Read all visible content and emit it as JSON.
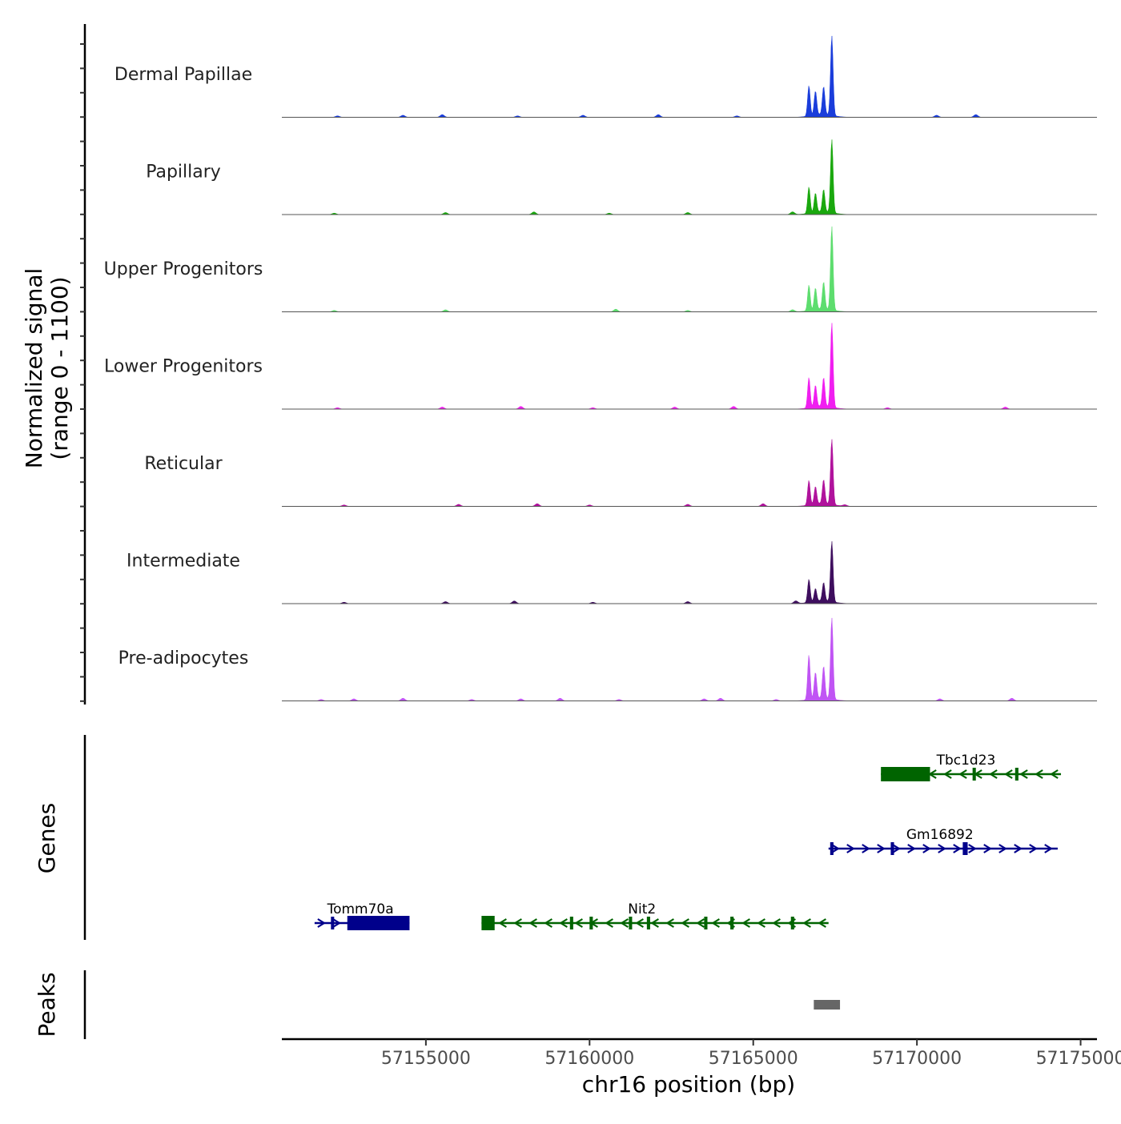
{
  "chart_data": {
    "type": "area",
    "title": "",
    "chromosome": "chr16",
    "xlabel": "chr16 position (bp)",
    "ylabel_line1": "Normalized signal",
    "ylabel_line2": "(range 0 - 1100)",
    "yrange": [
      0,
      1100
    ],
    "xlim": [
      57150600,
      57175500
    ],
    "x_ticks": [
      57155000,
      57160000,
      57165000,
      57170000,
      57175000
    ],
    "x_tick_labels": [
      "57155000",
      "57160000",
      "57165000",
      "57170000",
      "57175000"
    ],
    "genes_label": "Genes",
    "peaks_label": "Peaks",
    "coverage": [
      {
        "name": "Dermal Papillae",
        "color": "#1a3ddb",
        "peaks": [
          [
            57166700,
            380
          ],
          [
            57166900,
            300
          ],
          [
            57167150,
            350
          ],
          [
            57167400,
            1000
          ]
        ],
        "noise": [
          57152300,
          57154300,
          57155500,
          57157800,
          57159800,
          57162100,
          57164500,
          57170600,
          57171800
        ]
      },
      {
        "name": "Papillary",
        "color": "#1aa80e",
        "peaks": [
          [
            57166700,
            330
          ],
          [
            57166900,
            240
          ],
          [
            57167150,
            280
          ],
          [
            57167400,
            920
          ]
        ],
        "noise": [
          57152200,
          57155600,
          57158300,
          57160600,
          57163000,
          57166200
        ]
      },
      {
        "name": "Upper Progenitors",
        "color": "#5ddd6e",
        "peaks": [
          [
            57166700,
            320
          ],
          [
            57166900,
            270
          ],
          [
            57167150,
            340
          ],
          [
            57167400,
            1050
          ]
        ],
        "noise": [
          57152200,
          57155600,
          57160800,
          57163000,
          57166200
        ]
      },
      {
        "name": "Lower Progenitors",
        "color": "#f01ef0",
        "peaks": [
          [
            57166700,
            380
          ],
          [
            57166900,
            270
          ],
          [
            57167150,
            360
          ],
          [
            57167400,
            1060
          ]
        ],
        "noise": [
          57152300,
          57155500,
          57157900,
          57160100,
          57162600,
          57164400,
          57169100,
          57172700
        ]
      },
      {
        "name": "Reticular",
        "color": "#b0129c",
        "peaks": [
          [
            57166700,
            310
          ],
          [
            57166900,
            220
          ],
          [
            57167150,
            300
          ],
          [
            57167400,
            820
          ]
        ],
        "noise": [
          57152500,
          57156000,
          57158400,
          57160000,
          57163000,
          57165300,
          57167800
        ]
      },
      {
        "name": "Intermediate",
        "color": "#3e0e5e",
        "peaks": [
          [
            57166700,
            290
          ],
          [
            57166900,
            160
          ],
          [
            57167150,
            230
          ],
          [
            57167400,
            760
          ]
        ],
        "noise": [
          57152500,
          57155600,
          57157700,
          57160100,
          57163000,
          57166300
        ]
      },
      {
        "name": "Pre-adipocytes",
        "color": "#c054f4",
        "peaks": [
          [
            57166700,
            560
          ],
          [
            57166900,
            330
          ],
          [
            57167150,
            400
          ],
          [
            57167400,
            1020
          ]
        ],
        "noise": [
          57151800,
          57152800,
          57154300,
          57156400,
          57157900,
          57159100,
          57160900,
          57163500,
          57164000,
          57165700,
          57170700,
          57172900
        ]
      }
    ],
    "genes": [
      {
        "name": "Tbc1d23",
        "strand": "-",
        "color": "#006400",
        "start": 57168900,
        "end": 57174400,
        "row": 1,
        "exons": [
          [
            57168900,
            57170400
          ],
          [
            57171700,
            57171800
          ],
          [
            57173000,
            57173100
          ]
        ],
        "label_x": 57171500
      },
      {
        "name": "Gm16892",
        "strand": "+",
        "color": "#00008b",
        "start": 57167300,
        "end": 57174300,
        "row": 2,
        "exons": [
          [
            57167350,
            57167450
          ],
          [
            57169200,
            57169300
          ],
          [
            57171400,
            57171550
          ]
        ],
        "label_x": 57170700
      },
      {
        "name": "Tomm70a",
        "strand": "+",
        "color": "#00008b",
        "start": 57151600,
        "end": 57154500,
        "row": 3,
        "exons": [
          [
            57152600,
            57154500
          ],
          [
            57152100,
            57152150
          ]
        ],
        "label_x": 57153000
      },
      {
        "name": "Nit2",
        "strand": "-",
        "color": "#006400",
        "start": 57156700,
        "end": 57167300,
        "row": 3,
        "exons": [
          [
            57156700,
            57157100
          ],
          [
            57159400,
            57159500
          ],
          [
            57160000,
            57160100
          ],
          [
            57161200,
            57161300
          ],
          [
            57161750,
            57161850
          ],
          [
            57163500,
            57163600
          ],
          [
            57164300,
            57164400
          ],
          [
            57166150,
            57166250
          ]
        ],
        "label_x": 57161600
      }
    ],
    "peaks": [
      {
        "start": 57166850,
        "end": 57167650,
        "color": "#666666"
      }
    ]
  }
}
